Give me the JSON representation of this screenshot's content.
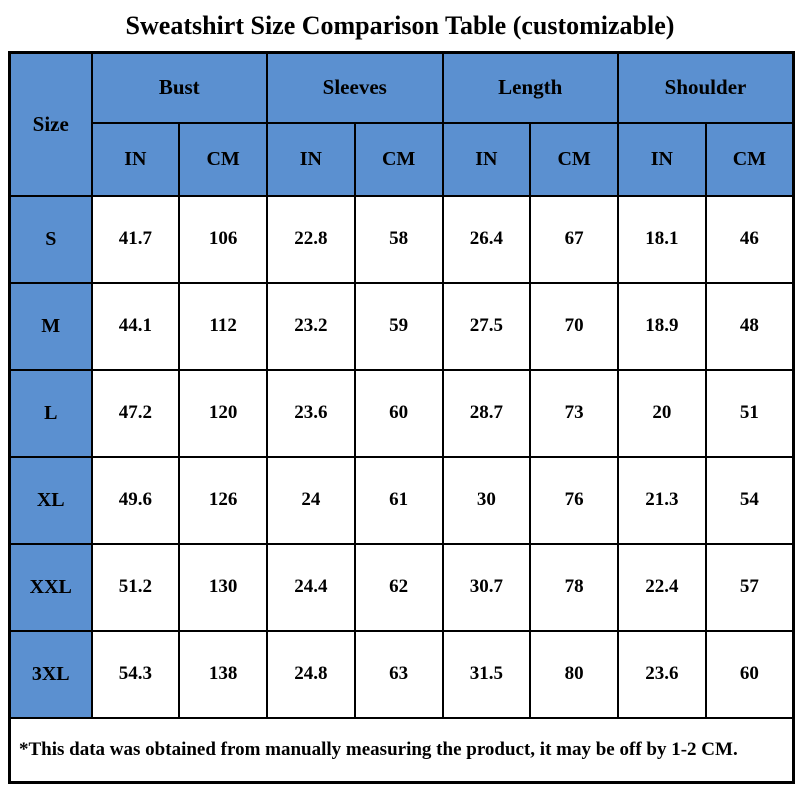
{
  "title": "Sweatshirt Size Comparison Table (customizable)",
  "colors": {
    "header_blue": "#5B90D0",
    "border": "#000000",
    "text": "#000000",
    "cell_bg": "#FFFFFF"
  },
  "table": {
    "corner_label": "Size",
    "group_headers": [
      "Bust",
      "Sleeves",
      "Length",
      "Shoulder"
    ],
    "unit_headers": [
      "IN",
      "CM",
      "IN",
      "CM",
      "IN",
      "CM",
      "IN",
      "CM"
    ],
    "footnote": "*This data was obtained from manually measuring the product, it may be off by 1-2 CM."
  },
  "chart_data": {
    "type": "table",
    "title": "Sweatshirt Size Comparison Table (customizable)",
    "columns": [
      "Size",
      "Bust IN",
      "Bust CM",
      "Sleeves IN",
      "Sleeves CM",
      "Length IN",
      "Length CM",
      "Shoulder IN",
      "Shoulder CM"
    ],
    "rows": [
      [
        "S",
        "41.7",
        "106",
        "22.8",
        "58",
        "26.4",
        "67",
        "18.1",
        "46"
      ],
      [
        "M",
        "44.1",
        "112",
        "23.2",
        "59",
        "27.5",
        "70",
        "18.9",
        "48"
      ],
      [
        "L",
        "47.2",
        "120",
        "23.6",
        "60",
        "28.7",
        "73",
        "20",
        "51"
      ],
      [
        "XL",
        "49.6",
        "126",
        "24",
        "61",
        "30",
        "76",
        "21.3",
        "54"
      ],
      [
        "XXL",
        "51.2",
        "130",
        "24.4",
        "62",
        "30.7",
        "78",
        "22.4",
        "57"
      ],
      [
        "3XL",
        "54.3",
        "138",
        "24.8",
        "63",
        "31.5",
        "80",
        "23.6",
        "60"
      ]
    ],
    "footnote": "*This data was obtained from manually measuring the product, it may be off by 1-2 CM."
  }
}
